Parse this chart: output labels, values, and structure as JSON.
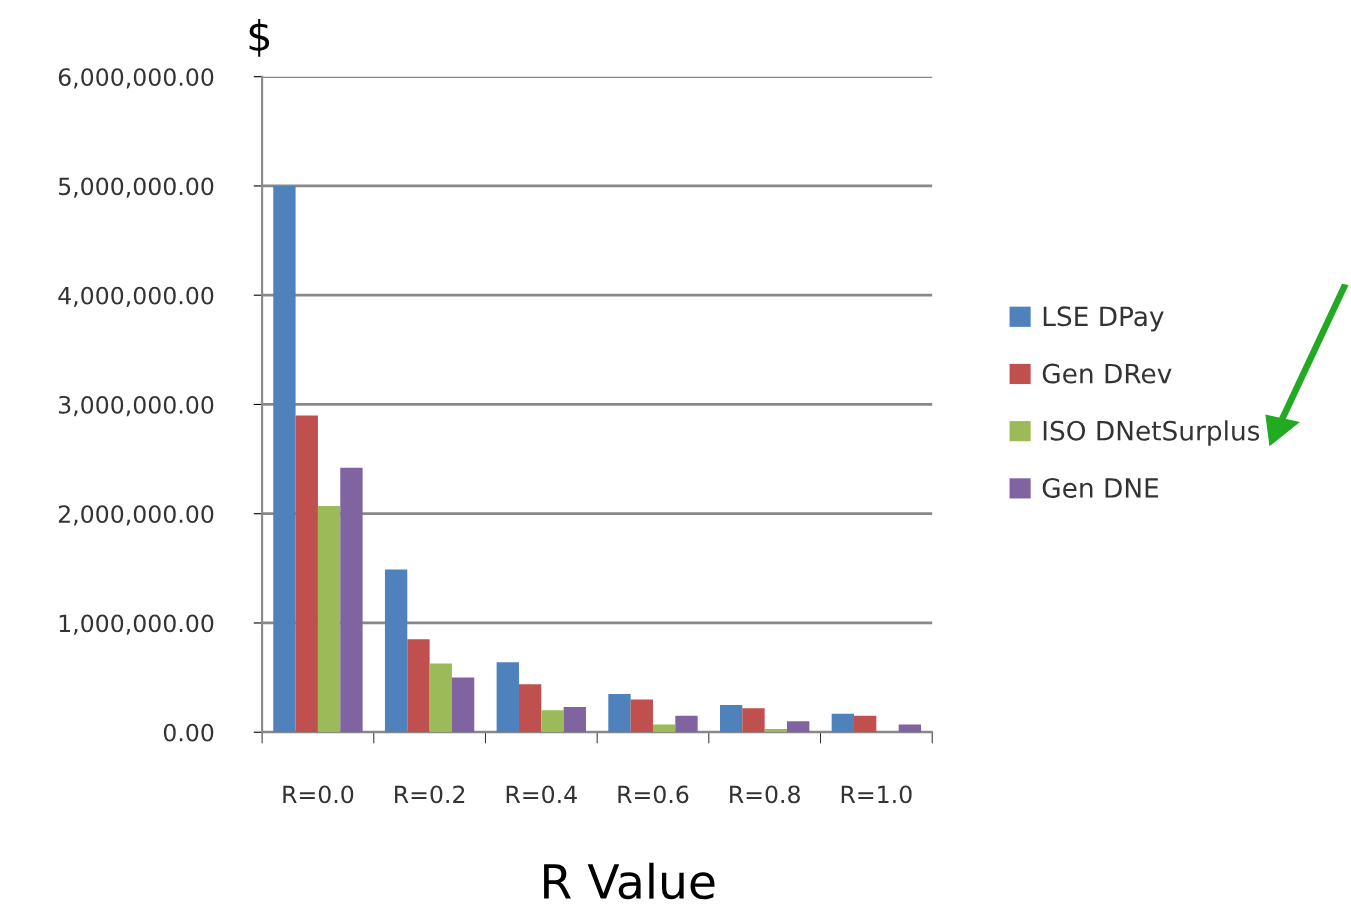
{
  "chart_data": {
    "type": "bar",
    "ylabel": "$",
    "xlabel": "R Value",
    "categories": [
      "R=0.0",
      "R=0.2",
      "R=0.4",
      "R=0.6",
      "R=0.8",
      "R=1.0"
    ],
    "series": [
      {
        "name": "LSE DPay",
        "color": "#4f81bd",
        "values": [
          5000000,
          1490000,
          640000,
          350000,
          250000,
          170000
        ]
      },
      {
        "name": "Gen DRev",
        "color": "#c0504d",
        "values": [
          2900000,
          850000,
          440000,
          300000,
          220000,
          150000
        ]
      },
      {
        "name": "ISO DNetSurplus",
        "color": "#9bbb59",
        "values": [
          2070000,
          630000,
          200000,
          70000,
          30000,
          null
        ]
      },
      {
        "name": "Gen DNE",
        "color": "#8064a2",
        "values": [
          2420000,
          500000,
          230000,
          150000,
          100000,
          70000
        ]
      }
    ],
    "ylim": [
      0,
      6000000
    ],
    "yticks": [
      {
        "value": 0,
        "label": "0.00"
      },
      {
        "value": 1000000,
        "label": "1,000,000.00"
      },
      {
        "value": 2000000,
        "label": "2,000,000.00"
      },
      {
        "value": 3000000,
        "label": "3,000,000.00"
      },
      {
        "value": 4000000,
        "label": "4,000,000.00"
      },
      {
        "value": 5000000,
        "label": "5,000,000.00"
      },
      {
        "value": 6000000,
        "label": "6,000,000.00"
      }
    ],
    "grid": "y",
    "legend": "right"
  }
}
